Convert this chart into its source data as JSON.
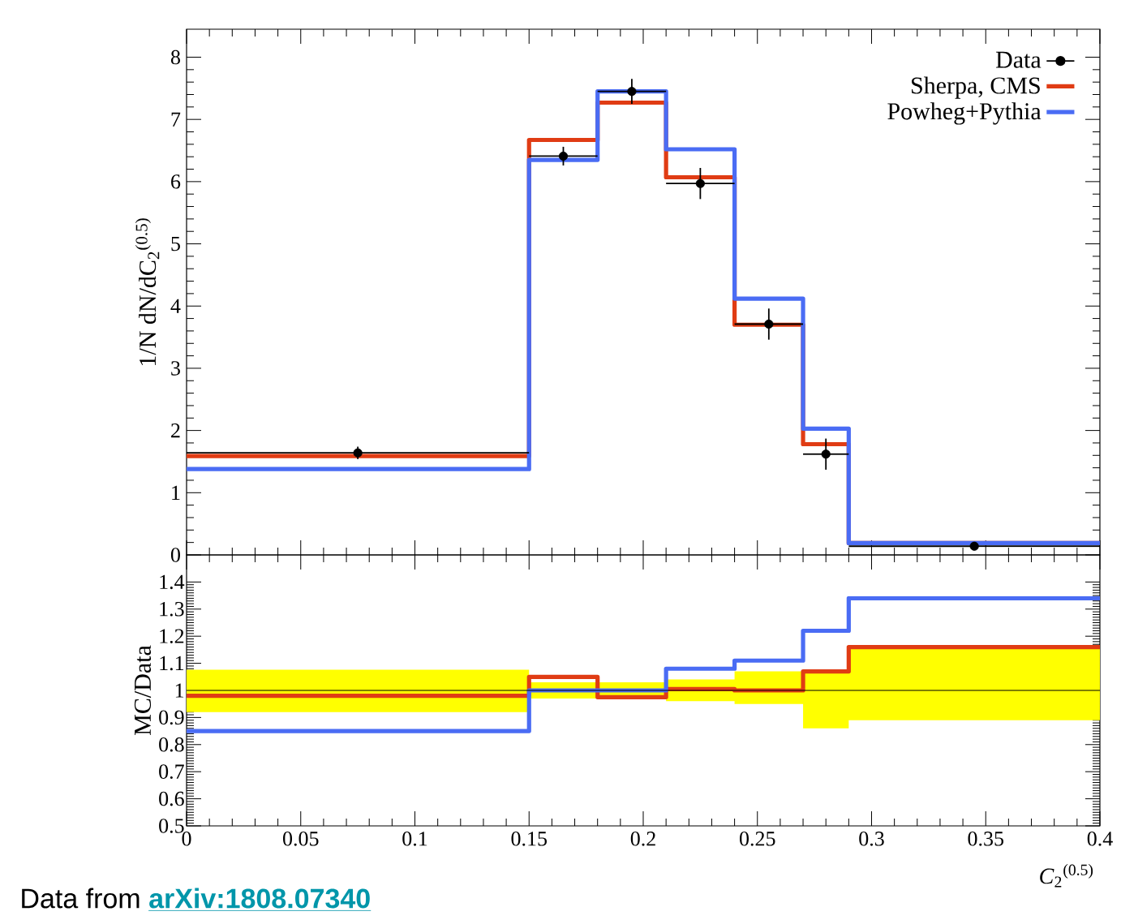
{
  "chart_data": [
    {
      "type": "histogram",
      "ylabel": "1/N dN/dC$_{2}$$^{(0.5)}$",
      "bins": [
        0,
        0.15,
        0.18,
        0.21,
        0.24,
        0.27,
        0.29,
        0.4
      ],
      "xlim": [
        0,
        0.4
      ],
      "xticks": [
        0,
        0.05,
        0.1,
        0.15,
        0.2,
        0.25,
        0.3,
        0.35,
        0.4
      ],
      "ylim": [
        0,
        8.45
      ],
      "yticks": [
        0,
        1,
        2,
        3,
        4,
        5,
        6,
        7,
        8
      ],
      "tick_labels": "y",
      "legend": "top right",
      "series": [
        {
          "name": "Data",
          "type": "scatter",
          "marker": "circle",
          "color": "#000000",
          "x": [
            0.075,
            0.165,
            0.195,
            0.225,
            0.255,
            0.28,
            0.345
          ],
          "values": [
            1.64,
            6.41,
            7.45,
            5.97,
            3.71,
            1.62,
            0.14
          ],
          "errors": [
            0.1,
            0.15,
            0.2,
            0.25,
            0.25,
            0.25,
            0.03
          ],
          "xerrors": [
            0.075,
            0.015,
            0.015,
            0.015,
            0.015,
            0.01,
            0.055
          ]
        },
        {
          "name": "Sherpa, CMS",
          "color": "#e03c14",
          "values": [
            1.59,
            6.67,
            7.27,
            6.07,
            3.7,
            1.78,
            0.19
          ]
        },
        {
          "name": "Powheg+Pythia",
          "color": "#4a6cf4",
          "values": [
            1.38,
            6.35,
            7.45,
            6.52,
            4.12,
            2.03,
            0.19
          ]
        }
      ]
    },
    {
      "type": "histogram",
      "ylabel": "MC/Data",
      "xlabel": "*C*$_{2}$$^{(0.5)}$",
      "bins": [
        0,
        0.15,
        0.18,
        0.21,
        0.24,
        0.27,
        0.29,
        0.4
      ],
      "xlim": [
        0,
        0.4
      ],
      "xticks": [
        0,
        0.05,
        0.1,
        0.15,
        0.2,
        0.25,
        0.3,
        0.35,
        0.4
      ],
      "ylim": [
        0.5,
        1.5
      ],
      "yticks": [
        0.5,
        0.6,
        0.7,
        0.8,
        0.9,
        1,
        1.1,
        1.2,
        1.3,
        1.4
      ],
      "ref_lines": [
        {
          "axis": "y",
          "value": 1,
          "color": "#000000"
        }
      ],
      "annotations": [
        "Data from",
        "arXiv:1808.07340"
      ],
      "series": [
        {
          "type": "line",
          "color": "#ffff00",
          "x": [
            0,
            0.15,
            0.15,
            0.21,
            0.21,
            0.24,
            0.24,
            0.27,
            0.27,
            0.29,
            0.29,
            0.4
          ],
          "values": [
            null,
            null,
            null,
            null,
            null,
            null,
            null,
            null,
            null,
            null,
            null,
            null
          ],
          "lower": [
            0.92,
            0.92,
            0.97,
            0.97,
            0.96,
            0.96,
            0.95,
            0.95,
            0.86,
            0.86,
            0.89,
            0.89
          ],
          "upper": [
            1.076,
            1.076,
            1.03,
            1.03,
            1.04,
            1.04,
            1.07,
            1.07,
            1.07,
            1.07,
            1.16,
            1.16
          ]
        },
        {
          "color": "#e03c14",
          "values": [
            0.98,
            1.05,
            0.975,
            1.005,
            1.0,
            1.07,
            1.16
          ]
        },
        {
          "color": "#4a6cf4",
          "values": [
            0.85,
            1.0,
            1.0,
            1.08,
            1.11,
            1.22,
            1.34
          ]
        }
      ]
    }
  ]
}
